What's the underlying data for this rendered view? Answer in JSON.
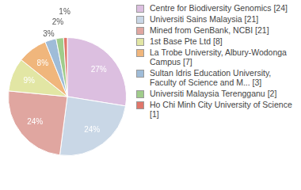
{
  "chart_data": {
    "type": "pie",
    "categories": [
      "Centre for Biodiversity Genomics [24]",
      "Universiti Sains Malaysia [21]",
      "Mined from GenBank, NCBI [21]",
      "1st Base Pte Ltd [8]",
      "La Trobe University, Albury-Wodonga Campus [7]",
      "Sultan Idris Education University, Faculty of Science and M... [3]",
      "Universiti Malaysia Terengganu [2]",
      "Ho Chi Minh City University of Science [1]"
    ],
    "values": [
      27,
      24,
      24,
      9,
      8,
      3,
      2,
      1
    ],
    "value_labels": [
      "27%",
      "24%",
      "24%",
      "9%",
      "8%",
      "3%",
      "2%",
      "1%"
    ],
    "colors": [
      "#dcbfe0",
      "#c9d7e6",
      "#e0a6a0",
      "#e2e6a4",
      "#f0b67c",
      "#9fbcd8",
      "#a0cc8b",
      "#e0766a"
    ],
    "data_labels": true,
    "legend": "right"
  }
}
